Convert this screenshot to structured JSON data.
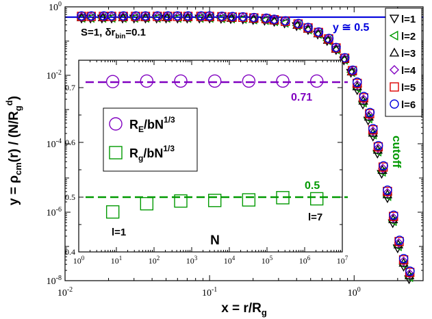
{
  "chart_data": [
    {
      "type": "scatter",
      "xscale": "log",
      "yscale": "log",
      "xlim": [
        0.01,
        3
      ],
      "ylim": [
        1e-08,
        1
      ],
      "xlabel": "x = r/R",
      "xlabel_sub": "g",
      "ylabel": {
        "main": "y = ρ",
        "sub": "cm",
        "mid": "(r) / (N/R",
        "sub2": "g",
        "sup": "d",
        "end": ")"
      },
      "x_ticks": [
        {
          "value": 0.01,
          "label": "10",
          "exp": "-2"
        },
        {
          "value": 0.1,
          "label": "10",
          "exp": "-1"
        },
        {
          "value": 1,
          "label": "10",
          "exp": "0"
        }
      ],
      "y_ticks": [
        {
          "value": 1,
          "label": "10",
          "exp": "0"
        },
        {
          "value": 0.01,
          "label": "10",
          "exp": "-2"
        },
        {
          "value": 0.0001,
          "label": "10",
          "exp": "-4"
        },
        {
          "value": 1e-06,
          "label": "10",
          "exp": "-6"
        },
        {
          "value": 1e-08,
          "label": "10",
          "exp": "-8"
        }
      ],
      "annotations": [
        {
          "text": "S=1, δr",
          "sub": "bin",
          "end": "=0.1",
          "color": "#000000"
        },
        {
          "text": "y ≅ 0.5",
          "color": "#0000dd"
        },
        {
          "text": "cutoff",
          "color": "#009900"
        }
      ],
      "reference_line": {
        "y": 0.5,
        "color": "#0000dd"
      },
      "series": [
        {
          "name": "l=1",
          "marker": "triangle-down",
          "color": "#000000"
        },
        {
          "name": "l=2",
          "marker": "triangle-left",
          "color": "#009900"
        },
        {
          "name": "l=3",
          "marker": "triangle-up",
          "color": "#000000"
        },
        {
          "name": "l=4",
          "marker": "diamond",
          "color": "#8000c0"
        },
        {
          "name": "l=5",
          "marker": "square",
          "color": "#dd0000"
        },
        {
          "name": "l=6",
          "marker": "circle",
          "color": "#0000dd"
        }
      ],
      "curve_x": [
        0.013,
        0.015,
        0.018,
        0.021,
        0.025,
        0.03,
        0.036,
        0.043,
        0.05,
        0.06,
        0.07,
        0.085,
        0.1,
        0.12,
        0.14,
        0.17,
        0.2,
        0.24,
        0.28,
        0.33,
        0.4,
        0.48,
        0.56,
        0.65,
        0.75,
        0.85,
        0.95,
        1.05,
        1.15,
        1.25,
        1.35,
        1.45,
        1.55,
        1.7,
        1.85,
        2.0,
        2.2,
        2.4
      ],
      "curve_y": [
        0.5,
        0.5,
        0.5,
        0.5,
        0.5,
        0.5,
        0.5,
        0.5,
        0.5,
        0.5,
        0.5,
        0.5,
        0.5,
        0.49,
        0.48,
        0.47,
        0.45,
        0.43,
        0.4,
        0.36,
        0.3,
        0.23,
        0.17,
        0.11,
        0.06,
        0.03,
        0.013,
        0.005,
        0.0019,
        0.00065,
        0.00022,
        7e-05,
        1.8e-05,
        3.5e-06,
        6.5e-07,
        1.2e-07,
        3.5e-08,
        1.5e-08
      ],
      "legend_position": "top-right"
    },
    {
      "type": "scatter",
      "role": "inset",
      "xscale": "log",
      "xlim": [
        1,
        10000000
      ],
      "ylim": [
        0.4,
        0.75
      ],
      "xlabel": "N",
      "x_ticks": [
        {
          "value": 1,
          "label": "10",
          "exp": "0"
        },
        {
          "value": 10,
          "label": "10",
          "exp": "1"
        },
        {
          "value": 100,
          "label": "10",
          "exp": "2"
        },
        {
          "value": 1000,
          "label": "10",
          "exp": "3"
        },
        {
          "value": 10000,
          "label": "10",
          "exp": "4"
        },
        {
          "value": 100000,
          "label": "10",
          "exp": "5"
        },
        {
          "value": 1000000,
          "label": "10",
          "exp": "6"
        },
        {
          "value": 10000000,
          "label": "10",
          "exp": "7"
        }
      ],
      "y_ticks": [
        0.4,
        0.5,
        0.6,
        0.7
      ],
      "N": [
        8,
        64,
        512,
        4096,
        32768,
        262144,
        2097152
      ],
      "series": [
        {
          "name": "R",
          "sub": "E",
          "tail": "/bN",
          "sup": "1/3",
          "marker": "circle",
          "color": "#8000c0",
          "values": [
            0.711,
            0.712,
            0.712,
            0.712,
            0.712,
            0.712,
            0.712
          ]
        },
        {
          "name": "R",
          "sub": "g",
          "tail": "/bN",
          "sup": "1/3",
          "marker": "square",
          "color": "#009900",
          "values": [
            0.473,
            0.488,
            0.493,
            0.494,
            0.495,
            0.499,
            0.497
          ]
        }
      ],
      "reference_lines": [
        {
          "y": 0.71,
          "label": "0.71",
          "color": "#8000c0"
        },
        {
          "y": 0.5,
          "label": "0.5",
          "color": "#009900"
        }
      ],
      "annotations": [
        {
          "text": "l=1",
          "color": "#000000"
        },
        {
          "text": "l=7",
          "color": "#000000"
        }
      ],
      "legend_position": "center-left"
    }
  ]
}
